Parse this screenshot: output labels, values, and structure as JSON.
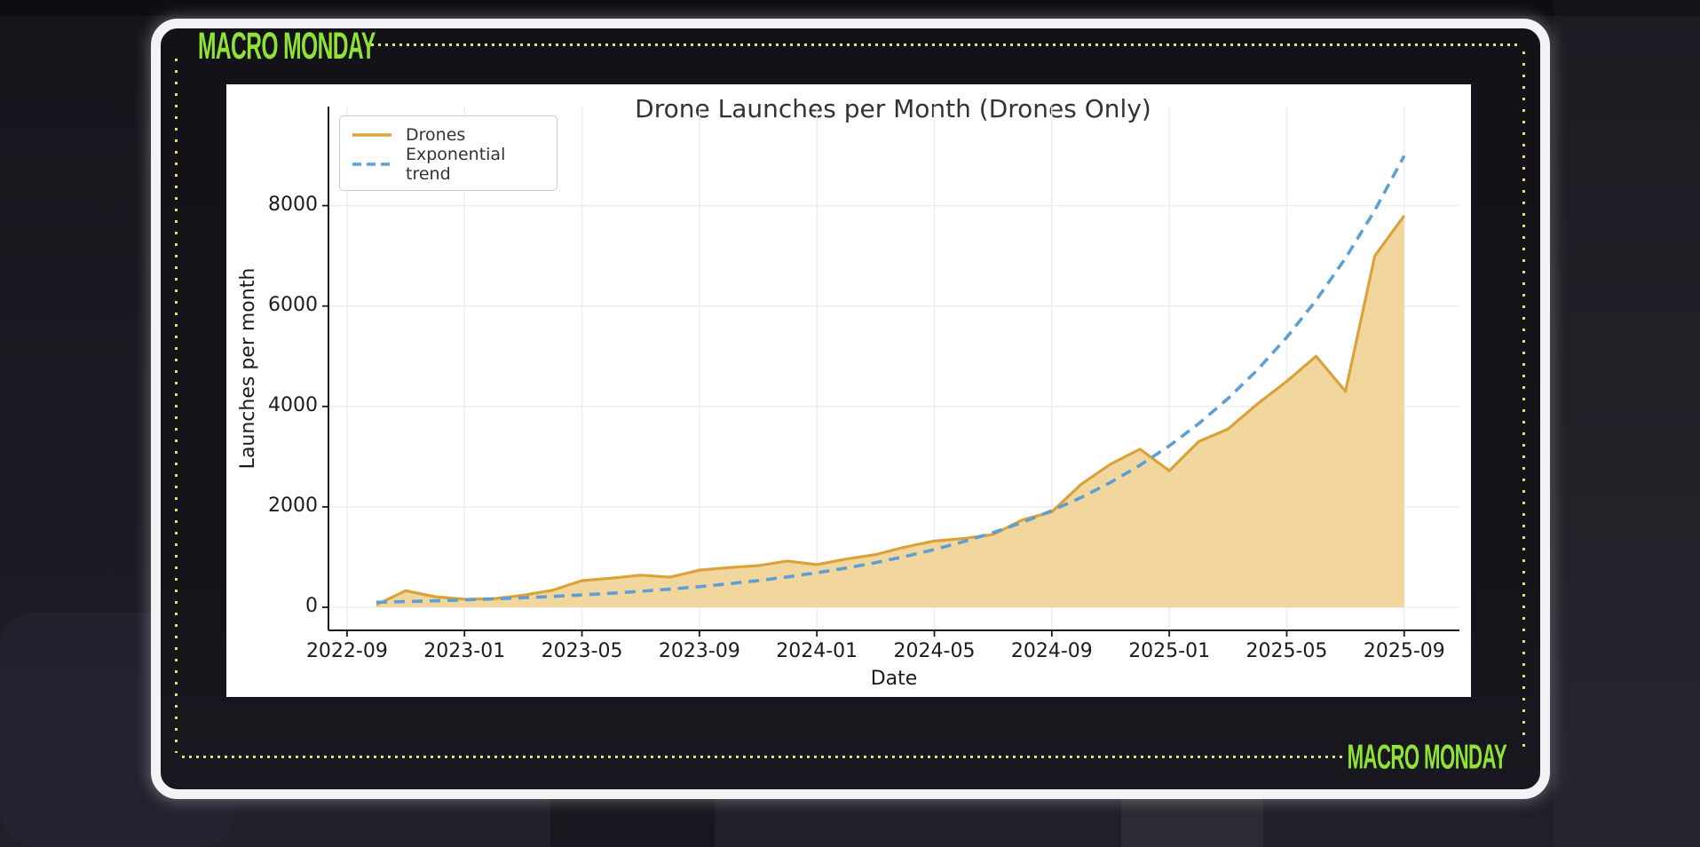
{
  "brand": {
    "top_left": "MACRO MONDAY",
    "bottom_right": "MACRO MONDAY",
    "accent_color": "#8ee334",
    "dot_color": "#dde26b",
    "frame_color": "#f3f3f5"
  },
  "chart_data": {
    "type": "area",
    "title": "Drone Launches per Month (Drones Only)",
    "xlabel": "Date",
    "ylabel": "Launches per month",
    "grid": true,
    "legend_position": "upper left",
    "ylim": [
      -460,
      10000
    ],
    "y_ticks": [
      0,
      2000,
      4000,
      6000,
      8000
    ],
    "x_ticks": [
      {
        "label": "2022-09",
        "month_index": -1
      },
      {
        "label": "2023-01",
        "month_index": 3
      },
      {
        "label": "2023-05",
        "month_index": 7
      },
      {
        "label": "2023-09",
        "month_index": 11
      },
      {
        "label": "2024-01",
        "month_index": 15
      },
      {
        "label": "2024-05",
        "month_index": 19
      },
      {
        "label": "2024-09",
        "month_index": 23
      },
      {
        "label": "2025-01",
        "month_index": 27
      },
      {
        "label": "2025-05",
        "month_index": 31
      },
      {
        "label": "2025-09",
        "month_index": 35
      }
    ],
    "categories": [
      "2022-10",
      "2022-11",
      "2022-12",
      "2023-01",
      "2023-02",
      "2023-03",
      "2023-04",
      "2023-05",
      "2023-06",
      "2023-07",
      "2023-08",
      "2023-09",
      "2023-10",
      "2023-11",
      "2023-12",
      "2024-01",
      "2024-02",
      "2024-03",
      "2024-04",
      "2024-05",
      "2024-06",
      "2024-07",
      "2024-08",
      "2024-09",
      "2024-10",
      "2024-11",
      "2024-12",
      "2025-01",
      "2025-02",
      "2025-03",
      "2025-04",
      "2025-05",
      "2025-06",
      "2025-07",
      "2025-08",
      "2025-09"
    ],
    "series": [
      {
        "name": "Drones",
        "style": "solid",
        "color": "#dba23a",
        "fill": "#f1d79e",
        "values": [
          50,
          330,
          210,
          160,
          170,
          240,
          340,
          530,
          580,
          640,
          600,
          740,
          790,
          830,
          920,
          850,
          960,
          1050,
          1200,
          1320,
          1370,
          1450,
          1740,
          1900,
          2450,
          2850,
          3150,
          2720,
          3300,
          3550,
          4050,
          4500,
          5000,
          4300,
          7000,
          7800
        ]
      },
      {
        "name": "Exponential trend",
        "style": "dashed",
        "color": "#5d9fd4",
        "values": [
          100,
          114,
          129,
          147,
          167,
          190,
          216,
          246,
          280,
          318,
          362,
          411,
          468,
          532,
          605,
          688,
          782,
          889,
          1011,
          1150,
          1308,
          1487,
          1691,
          1923,
          2187,
          2487,
          2828,
          3215,
          3657,
          4158,
          4728,
          5377,
          6114,
          6953,
          7907,
          8991
        ]
      }
    ]
  }
}
